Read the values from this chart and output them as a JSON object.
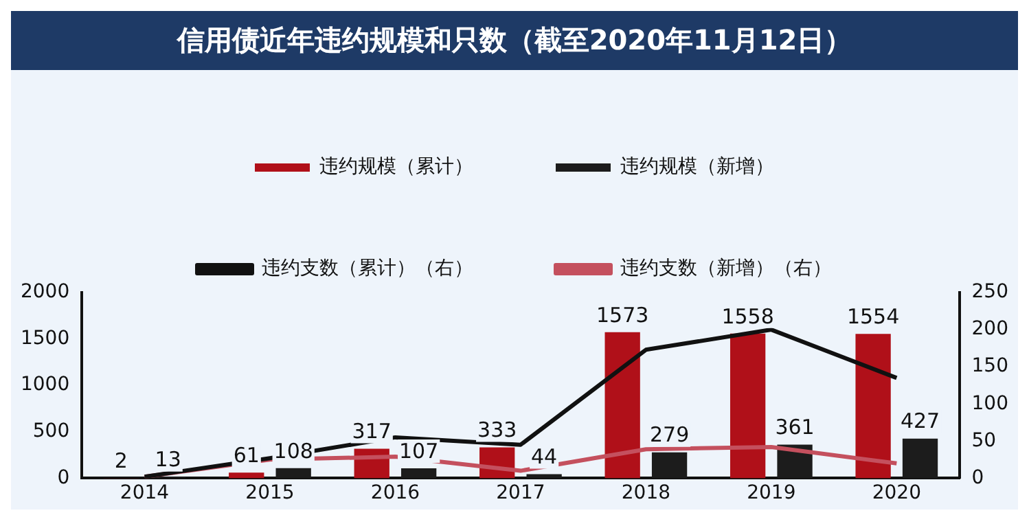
{
  "chart_data": {
    "type": "bar",
    "title": "信用债近年违约规模和只数（截至2020年11月12日）",
    "categories": [
      "2014",
      "2015",
      "2016",
      "2017",
      "2018",
      "2019",
      "2020"
    ],
    "series": [
      {
        "name": "违约规模（累计）",
        "color": "#b01019",
        "values": [
          2,
          61,
          317,
          333,
          1573,
          1558,
          1554
        ],
        "value_labels": [
          "2",
          "61",
          "317",
          "333",
          "1573",
          "1558",
          "1554"
        ]
      },
      {
        "name": "违约规模（新增）",
        "color": "#1c1c1c",
        "values": [
          13,
          108,
          107,
          44,
          279,
          361,
          427
        ],
        "value_labels": [
          "13",
          "108",
          "107",
          "44",
          "279",
          "361",
          "427"
        ]
      },
      {
        "name": "违约支数（累计）（右）",
        "type": "line",
        "axis": "y2",
        "color": "#111111",
        "values": [
          2,
          27,
          55,
          45,
          173,
          200,
          135
        ]
      },
      {
        "name": "违约支数（新增）（右）",
        "type": "line",
        "axis": "y2",
        "color": "#c4505e",
        "values": [
          2,
          25,
          29,
          10,
          39,
          42,
          20
        ]
      }
    ],
    "ylim": [
      0,
      2000
    ],
    "yticks": [
      0,
      500,
      1000,
      1500,
      2000
    ],
    "y2lim": [
      0,
      250
    ],
    "y2ticks": [
      0,
      50,
      100,
      150,
      200,
      250
    ],
    "grid": false,
    "legend": "top",
    "marker": "none",
    "line_style": "solid"
  }
}
